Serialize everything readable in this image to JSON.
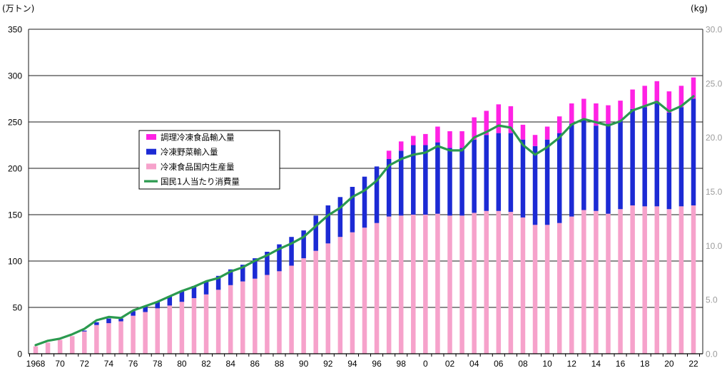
{
  "chart_data": {
    "type": "bar",
    "stacked": true,
    "grid": true,
    "years": [
      1968,
      1969,
      1970,
      1971,
      1972,
      1973,
      1974,
      1975,
      1976,
      1977,
      1978,
      1979,
      1980,
      1981,
      1982,
      1983,
      1984,
      1985,
      1986,
      1987,
      1988,
      1989,
      1990,
      1991,
      1992,
      1993,
      1994,
      1995,
      1996,
      1997,
      1998,
      1999,
      2000,
      2001,
      2002,
      2003,
      2004,
      2005,
      2006,
      2007,
      2008,
      2009,
      2010,
      2011,
      2012,
      2013,
      2014,
      2015,
      2016,
      2017,
      2018,
      2019,
      2020,
      2021,
      2022
    ],
    "x_tick_labels": [
      "1968",
      "70",
      "72",
      "74",
      "76",
      "78",
      "80",
      "82",
      "84",
      "86",
      "88",
      "90",
      "92",
      "94",
      "96",
      "98",
      "0",
      "02",
      "04",
      "06",
      "08",
      "10",
      "12",
      "14",
      "16",
      "18",
      "20",
      "22"
    ],
    "y_left": {
      "label": "(万トン)",
      "range": [
        0,
        350
      ],
      "ticks": [
        "0",
        "50",
        "100",
        "150",
        "200",
        "250",
        "300",
        "350"
      ]
    },
    "y_right": {
      "label": "(kg)",
      "range": [
        0,
        30
      ],
      "ticks": [
        "0.0",
        "5.0",
        "10.0",
        "15.0",
        "20.0",
        "25.0",
        "30.0"
      ]
    },
    "series": [
      {
        "name": "冷凍食品国内生産量",
        "type": "bar",
        "axis": "left",
        "color": "#f6a2cb",
        "values": [
          8,
          12,
          15,
          19,
          24,
          31,
          33,
          35,
          41,
          45,
          49,
          52,
          56,
          60,
          64,
          69,
          74,
          78,
          81,
          85,
          89,
          95,
          103,
          111,
          119,
          126,
          131,
          136,
          141,
          148,
          149,
          150,
          150,
          151,
          149,
          149,
          152,
          154,
          154,
          153,
          147,
          139,
          139,
          141,
          148,
          155,
          154,
          151,
          156,
          160,
          159,
          159,
          156,
          159,
          160
        ]
      },
      {
        "name": "冷凍野菜輸入量",
        "type": "bar",
        "axis": "left",
        "color": "#1c2ad4",
        "values": [
          0,
          0,
          0,
          0,
          1,
          3,
          5,
          3,
          5,
          6,
          7,
          10,
          12,
          13,
          14,
          15,
          17,
          18,
          22,
          25,
          29,
          31,
          30,
          38,
          41,
          43,
          49,
          55,
          61,
          62,
          70,
          75,
          75,
          77,
          73,
          73,
          79,
          82,
          84,
          85,
          84,
          85,
          92,
          97,
          100,
          97,
          92,
          97,
          95,
          104,
          107,
          111,
          104,
          107,
          115
        ]
      },
      {
        "name": "調理冷凍食品輸入量",
        "type": "bar",
        "axis": "left",
        "color": "#ff22e4",
        "values": [
          0,
          0,
          0,
          0,
          0,
          0,
          0,
          0,
          0,
          0,
          0,
          0,
          0,
          0,
          0,
          0,
          0,
          0,
          0,
          0,
          0,
          0,
          0,
          0,
          0,
          0,
          0,
          0,
          0,
          9,
          10,
          10,
          12,
          17,
          18,
          18,
          24,
          26,
          31,
          29,
          16,
          12,
          14,
          18,
          22,
          23,
          24,
          20,
          22,
          21,
          23,
          24,
          23,
          23,
          23
        ]
      },
      {
        "name": "国民1人当たり消費量",
        "type": "line",
        "axis": "right",
        "color": "#2b9a4f",
        "values": [
          0.8,
          1.2,
          1.4,
          1.8,
          2.3,
          3.1,
          3.4,
          3.3,
          4.0,
          4.4,
          4.8,
          5.3,
          5.8,
          6.2,
          6.7,
          7.0,
          7.6,
          8.0,
          8.6,
          9.1,
          9.7,
          10.2,
          10.8,
          11.8,
          12.8,
          13.5,
          14.5,
          15.1,
          16.0,
          17.4,
          18.0,
          18.4,
          18.6,
          19.2,
          18.8,
          18.8,
          20.0,
          20.5,
          21.1,
          20.9,
          19.3,
          18.4,
          19.1,
          20.0,
          21.2,
          21.7,
          21.4,
          21.1,
          21.5,
          22.5,
          22.9,
          23.3,
          22.4,
          22.9,
          23.8
        ]
      }
    ],
    "legend": {
      "placement": "center-left",
      "order": [
        2,
        1,
        0,
        3
      ]
    }
  }
}
